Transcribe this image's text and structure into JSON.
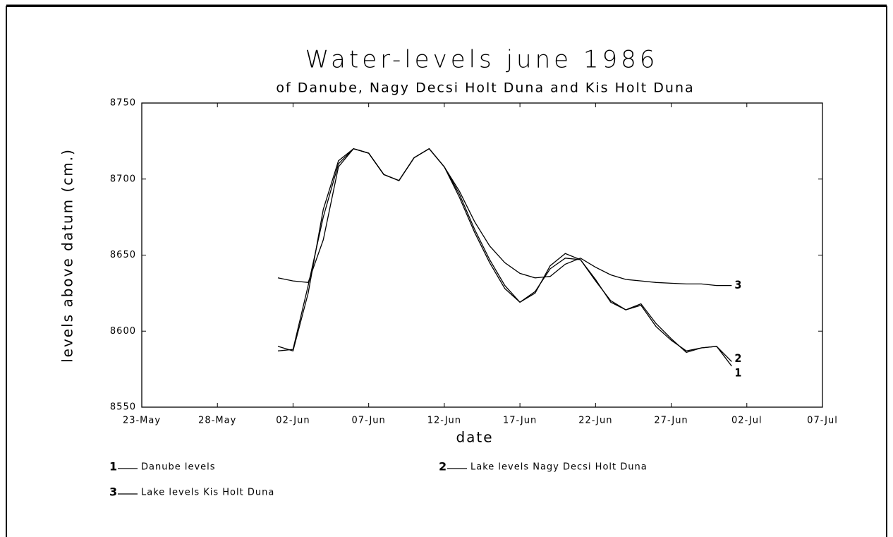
{
  "chart_data": {
    "type": "line",
    "title": "Water-levels june 1986",
    "subtitle": "of Danube, Nagy Decsi Holt Duna and Kis Holt Duna",
    "x_label": "date",
    "y_label": "levels above datum (cm.)",
    "x": [
      "01-Jun",
      "02-Jun",
      "03-Jun",
      "04-Jun",
      "05-Jun",
      "06-Jun",
      "07-Jun",
      "08-Jun",
      "09-Jun",
      "10-Jun",
      "11-Jun",
      "12-Jun",
      "13-Jun",
      "14-Jun",
      "15-Jun",
      "16-Jun",
      "17-Jun",
      "18-Jun",
      "19-Jun",
      "20-Jun",
      "21-Jun",
      "22-Jun",
      "23-Jun",
      "24-Jun",
      "25-Jun",
      "26-Jun",
      "27-Jun",
      "28-Jun",
      "29-Jun",
      "30-Jun",
      "01-Jul"
    ],
    "series": [
      {
        "name": "Danube levels",
        "end_label": "1",
        "color": "#000000",
        "values": [
          8587,
          8588,
          8630,
          8675,
          8710,
          8720,
          8717,
          8703,
          8699,
          8714,
          8720,
          8708,
          8688,
          8665,
          8645,
          8628,
          8619,
          8625,
          8643,
          8651,
          8647,
          8633,
          8620,
          8614,
          8618,
          8605,
          8595,
          8586,
          8589,
          8590,
          8577
        ]
      },
      {
        "name": "Lake levels Nagy Decsi Holt Duna",
        "end_label": "2",
        "color": "#000000",
        "values": [
          8590,
          8587,
          8625,
          8680,
          8712,
          8720,
          8717,
          8703,
          8699,
          8714,
          8720,
          8708,
          8690,
          8667,
          8647,
          8630,
          8619,
          8626,
          8641,
          8648,
          8647,
          8634,
          8619,
          8614,
          8617,
          8603,
          8594,
          8587,
          8589,
          8590,
          8580
        ]
      },
      {
        "name": "Lake levels Kis Holt Duna",
        "end_label": "3",
        "color": "#000000",
        "values": [
          8635,
          8633,
          8632,
          8660,
          8708,
          8720,
          8717,
          8703,
          8699,
          8714,
          8720,
          8708,
          8692,
          8672,
          8656,
          8645,
          8638,
          8635,
          8636,
          8644,
          8648,
          8642,
          8637,
          8634,
          8633,
          8632,
          8631.5,
          8631,
          8631,
          8630,
          8630
        ]
      }
    ],
    "xlim": [
      "23-May",
      "07-Jul"
    ],
    "xticks": [
      "23-May",
      "28-May",
      "02-Jun",
      "07-Jun",
      "12-Jun",
      "17-Jun",
      "22-Jun",
      "27-Jun",
      "02-Jul",
      "07-Jul"
    ],
    "ylim": [
      8550,
      8750
    ],
    "yticks": [
      8550,
      8600,
      8650,
      8700,
      8750
    ],
    "grid": false
  }
}
